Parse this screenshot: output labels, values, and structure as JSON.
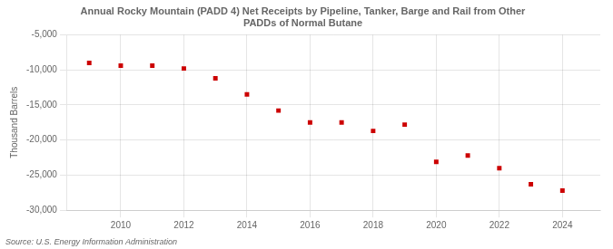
{
  "chart_data": {
    "type": "scatter",
    "title": "Annual Rocky Mountain (PADD 4) Net Receipts by Pipeline, Tanker, Barge and Rail from Other\nPADDs of Normal Butane",
    "ylabel": "Thousand Barrels",
    "source": "Source: U.S. Energy Information Administration",
    "x": [
      2009,
      2010,
      2011,
      2012,
      2013,
      2014,
      2015,
      2016,
      2017,
      2018,
      2019,
      2020,
      2021,
      2022,
      2023,
      2024
    ],
    "values": [
      -9000,
      -9400,
      -9400,
      -9800,
      -11200,
      -13500,
      -15800,
      -17500,
      -17500,
      -18700,
      -17800,
      -23100,
      -22200,
      -24000,
      -26300,
      -27200
    ],
    "color": "#cc0000",
    "marker": "square",
    "xlim": [
      2008.3,
      2025.2
    ],
    "xticks": [
      2010,
      2012,
      2014,
      2016,
      2018,
      2020,
      2022,
      2024
    ],
    "ylim": [
      -30000,
      -5000
    ],
    "yticks": [
      {
        "value": -30000,
        "label": "-30,000"
      },
      {
        "value": -25000,
        "label": "-25,000"
      },
      {
        "value": -20000,
        "label": "-20,000"
      },
      {
        "value": -15000,
        "label": "-15,000"
      },
      {
        "value": -10000,
        "label": "-10,000"
      },
      {
        "value": -5000,
        "label": "-5,000"
      }
    ],
    "grid": true
  }
}
